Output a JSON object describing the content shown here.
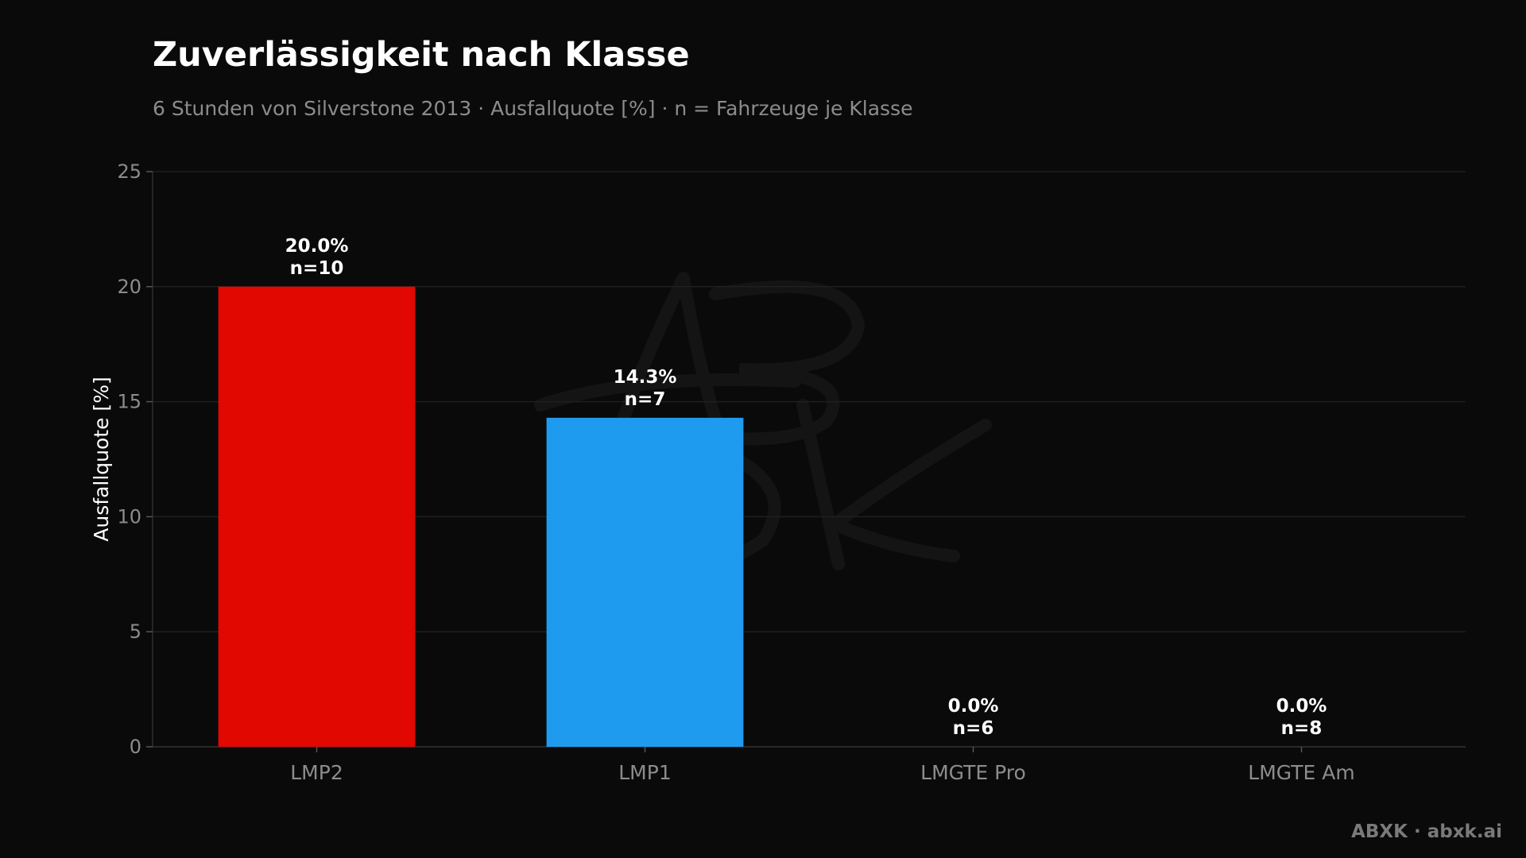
{
  "header": {
    "title": "Zuverlässigkeit nach Klasse",
    "subtitle": "6 Stunden von Silverstone 2013 · Ausfallquote [%] · n = Fahrzeuge je Klasse"
  },
  "chart_data": {
    "type": "bar",
    "title": "Zuverlässigkeit nach Klasse",
    "subtitle": "6 Stunden von Silverstone 2013 · Ausfallquote [%] · n = Fahrzeuge je Klasse",
    "xlabel": "",
    "ylabel": "Ausfallquote [%]",
    "ylim": [
      0,
      25
    ],
    "yticks": [
      0,
      5,
      10,
      15,
      20,
      25
    ],
    "ytick_labels": [
      "0",
      "5",
      "10",
      "15",
      "20",
      "25"
    ],
    "grid": true,
    "categories": [
      "LMP2",
      "LMP1",
      "LMGTE Pro",
      "LMGTE Am"
    ],
    "values": [
      20.0,
      14.3,
      0.0,
      0.0
    ],
    "value_labels": [
      "20.0%",
      "14.3%",
      "0.0%",
      "0.0%"
    ],
    "counts": [
      "n=10",
      "n=7",
      "n=6",
      "n=8"
    ],
    "colors": [
      "#e00800",
      "#1e9bef",
      "#1e9bef",
      "#1e9bef"
    ]
  },
  "watermark": {
    "text": "ABXK"
  },
  "footer": {
    "brand": "ABXK · abxk.ai"
  },
  "colors": {
    "background": "#0a0a0a",
    "grid": "#1f1f1f",
    "axis_text": "#8c8c8c",
    "label_text": "#ffffff"
  }
}
